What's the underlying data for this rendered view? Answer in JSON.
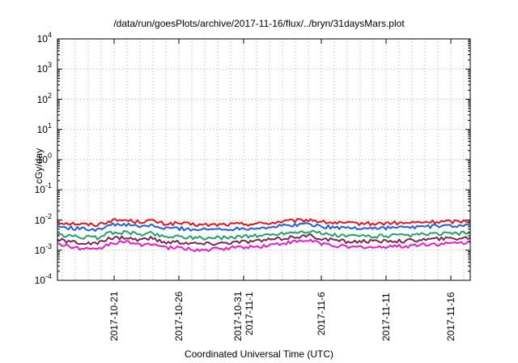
{
  "chart_data": {
    "type": "line",
    "title": "/data/run/goesPlots/archive/2017-11-16/flux/../bryn/31daysMars.plot",
    "xlabel": "Coordinated Universal Time (UTC)",
    "ylabel": "cGy/day",
    "yscale": "log",
    "ylim": [
      0.0001,
      10000
    ],
    "y_tick_exponents": [
      "-4",
      "-3",
      "-2",
      "-1",
      "0",
      "1",
      "2",
      "3",
      "4"
    ],
    "xlim": [
      "2017-10-16T15:00",
      "2017-11-17T12:00"
    ],
    "x_ticks": [
      {
        "date": "2017-10-21",
        "lines": [
          "2017-10-21"
        ]
      },
      {
        "date": "2017-10-26",
        "lines": [
          "2017-10-26"
        ]
      },
      {
        "date": "2017-10-31",
        "lines": [
          "2017-10-31",
          "2017-11-1"
        ]
      },
      {
        "date": "2017-11-06",
        "lines": [
          "2017-11-6"
        ]
      },
      {
        "date": "2017-11-11",
        "lines": [
          "2017-11-11"
        ]
      },
      {
        "date": "2017-11-16",
        "lines": [
          "2017-11-16"
        ]
      }
    ],
    "grid": true,
    "series": [
      {
        "color": "#e8141c",
        "values": [
          0.0085,
          0.0078,
          0.0072,
          0.007,
          0.0095,
          0.01,
          0.0088,
          0.0095,
          0.0075,
          0.0078,
          0.0072,
          0.0068,
          0.007,
          0.0072,
          0.0074,
          0.0076,
          0.008,
          0.009,
          0.0095,
          0.0102,
          0.0085,
          0.008,
          0.0076,
          0.0078,
          0.0075,
          0.008,
          0.0078,
          0.0082,
          0.0086,
          0.0088,
          0.009,
          0.0094
        ]
      },
      {
        "color": "#1f5fe0",
        "values": [
          0.006,
          0.0055,
          0.005,
          0.005,
          0.0068,
          0.0072,
          0.006,
          0.0066,
          0.0052,
          0.0054,
          0.005,
          0.0048,
          0.005,
          0.0051,
          0.0053,
          0.0055,
          0.0058,
          0.0065,
          0.007,
          0.0074,
          0.006,
          0.0057,
          0.0054,
          0.0055,
          0.0053,
          0.0057,
          0.0056,
          0.0059,
          0.0062,
          0.0063,
          0.0064,
          0.0066
        ]
      },
      {
        "color": "#22a36b",
        "values": [
          0.0032,
          0.0029,
          0.0027,
          0.0026,
          0.0038,
          0.004,
          0.0034,
          0.0037,
          0.0028,
          0.0029,
          0.0027,
          0.0025,
          0.0026,
          0.0027,
          0.0029,
          0.003,
          0.0032,
          0.0037,
          0.004,
          0.0043,
          0.0034,
          0.0031,
          0.0029,
          0.003,
          0.0029,
          0.0031,
          0.003,
          0.0032,
          0.0034,
          0.0035,
          0.0036,
          0.0037
        ]
      },
      {
        "color": "#7a2a4a",
        "values": [
          0.0022,
          0.0019,
          0.0017,
          0.0016,
          0.0025,
          0.0027,
          0.0022,
          0.0025,
          0.0018,
          0.0019,
          0.0017,
          0.0016,
          0.0017,
          0.0018,
          0.0019,
          0.002,
          0.0022,
          0.0025,
          0.0028,
          0.003,
          0.0023,
          0.0021,
          0.0019,
          0.002,
          0.0019,
          0.0021,
          0.002,
          0.0022,
          0.0023,
          0.0024,
          0.0025,
          0.0026
        ]
      },
      {
        "color": "#ee18d4",
        "values": [
          0.0016,
          0.0013,
          0.0011,
          0.001,
          0.0017,
          0.0019,
          0.0015,
          0.0017,
          0.0012,
          0.0012,
          0.0011,
          0.001,
          0.0011,
          0.0012,
          0.0013,
          0.0013,
          0.0015,
          0.0017,
          0.0019,
          0.0021,
          0.0016,
          0.0014,
          0.0012,
          0.0013,
          0.0012,
          0.0014,
          0.0013,
          0.0015,
          0.0016,
          0.0016,
          0.0017,
          0.0018
        ]
      }
    ]
  }
}
